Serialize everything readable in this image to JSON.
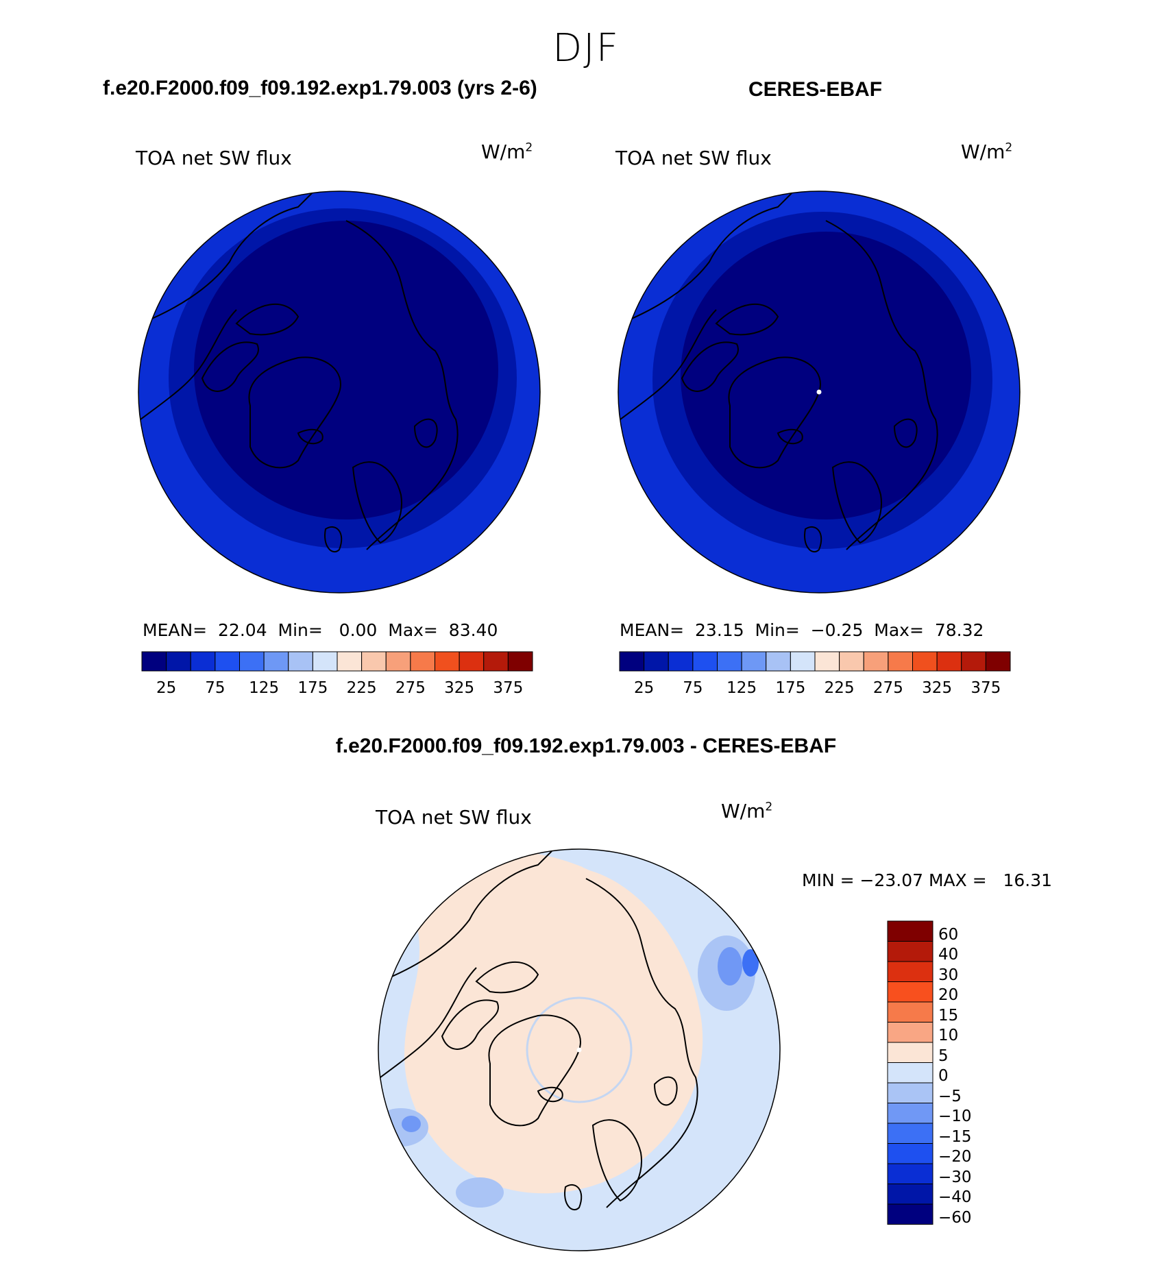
{
  "season": "DJF",
  "panels": [
    {
      "title": "f.e20.F2000.f09_f09.192.exp1.79.003 (yrs 2-6)",
      "variable": "TOA net SW flux",
      "units": "W/m",
      "units_exp": "2",
      "stats": {
        "mean_label": "MEAN=",
        "mean": "22.04",
        "min_label": "Min=",
        "min": "0.00",
        "max_label": "Max=",
        "max": "83.40"
      }
    },
    {
      "title": "CERES-EBAF",
      "variable": "TOA net SW flux",
      "units": "W/m",
      "units_exp": "2",
      "stats": {
        "mean_label": "MEAN=",
        "mean": "23.15",
        "min_label": "Min=",
        "min": "−0.25",
        "max_label": "Max=",
        "max": "78.32"
      }
    }
  ],
  "diff": {
    "title": "f.e20.F2000.f09_f09.192.exp1.79.003 - CERES-EBAF",
    "variable": "TOA net SW flux",
    "units": "W/m",
    "units_exp": "2",
    "minmax": "MIN = −23.07 MAX =   16.31"
  },
  "colorbar_abs": {
    "colors": [
      "#00007f",
      "#0016a8",
      "#0a2ed4",
      "#1e50f0",
      "#3c70f5",
      "#6e98f5",
      "#a8c2f5",
      "#d4e4fa",
      "#fbe5d6",
      "#f9c8ad",
      "#f7a07a",
      "#f67a4a",
      "#f0501e",
      "#dc3010",
      "#b41a0a",
      "#7f0000"
    ],
    "labels": [
      "25",
      "75",
      "125",
      "175",
      "225",
      "275",
      "325",
      "375"
    ]
  },
  "colorbar_diff": {
    "colors": [
      "#7f0000",
      "#b41a0a",
      "#dc3010",
      "#f8501e",
      "#f67a4a",
      "#f9a684",
      "#fbe5d6",
      "#d4e4fa",
      "#aac4f5",
      "#7098f5",
      "#3c70f5",
      "#1e50f0",
      "#0a2ed4",
      "#0016a8",
      "#00007f"
    ],
    "labels": [
      "60",
      "40",
      "30",
      "20",
      "15",
      "10",
      "5",
      "0",
      "−5",
      "−10",
      "−15",
      "−20",
      "−30",
      "−40",
      "−60"
    ]
  },
  "map_colors": {
    "deep": "#00007f",
    "mid": "#0016a8",
    "outer": "#0a2ed4",
    "diff_pos": "#fbe5d6",
    "diff_neg": "#d4e4fa",
    "diff_neg2": "#aac4f5",
    "diff_neg3": "#7098f5",
    "diff_neg4": "#3c70f5",
    "diff_pos2": "#f7a07a"
  }
}
